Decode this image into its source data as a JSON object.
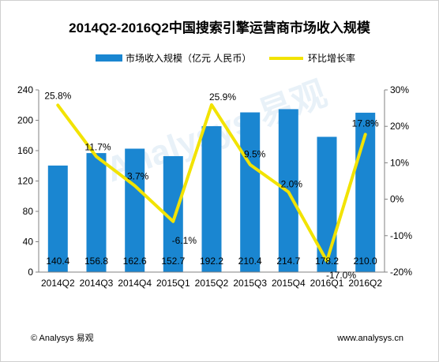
{
  "footer": {
    "left": "© Analysys 易观",
    "right": "www.analysys.cn"
  },
  "watermark": {
    "text": "Analysys 易观",
    "color": "#d6e6f4"
  },
  "colors": {
    "bar": "#1a86d1",
    "line": "#f2e300",
    "axis": "#808080"
  },
  "chart_data": {
    "type": "bar",
    "title": "2014Q2-2016Q2中国搜索引擎运营商市场收入规模",
    "categories": [
      "2014Q2",
      "2014Q3",
      "2014Q4",
      "2015Q1",
      "2015Q2",
      "2015Q3",
      "2015Q4",
      "2016Q1",
      "2016Q2"
    ],
    "series": [
      {
        "name": "市场收入规模（亿元 人民币）",
        "type": "bar",
        "axis": "left",
        "values": [
          140.4,
          156.8,
          162.6,
          152.7,
          192.2,
          210.4,
          214.7,
          178.2,
          210.0
        ],
        "labels": [
          "140.4",
          "156.8",
          "162.6",
          "152.7",
          "192.2",
          "210.4",
          "214.7",
          "178.2",
          "210.0"
        ]
      },
      {
        "name": "环比增长率",
        "type": "line",
        "axis": "right",
        "values": [
          25.8,
          11.7,
          3.7,
          -6.1,
          25.9,
          9.5,
          2.0,
          -17.0,
          17.8
        ],
        "labels": [
          "25.8%",
          "11.7%",
          "3.7%",
          "-6.1%",
          "25.9%",
          "9.5%",
          "2.0%",
          "-17.0%",
          "17.8%"
        ]
      }
    ],
    "y_left": {
      "min": 0,
      "max": 240,
      "ticks": [
        0,
        40,
        80,
        120,
        160,
        200,
        240
      ],
      "tick_labels": [
        "0",
        "40",
        "80",
        "120",
        "160",
        "200",
        "240"
      ]
    },
    "y_right": {
      "min": -20,
      "max": 30,
      "ticks": [
        -20,
        -10,
        0,
        10,
        20,
        30
      ],
      "tick_labels": [
        "-20%",
        "-10%",
        "0%",
        "10%",
        "20%",
        "30%"
      ]
    },
    "grid": false,
    "legend_position": "top"
  }
}
